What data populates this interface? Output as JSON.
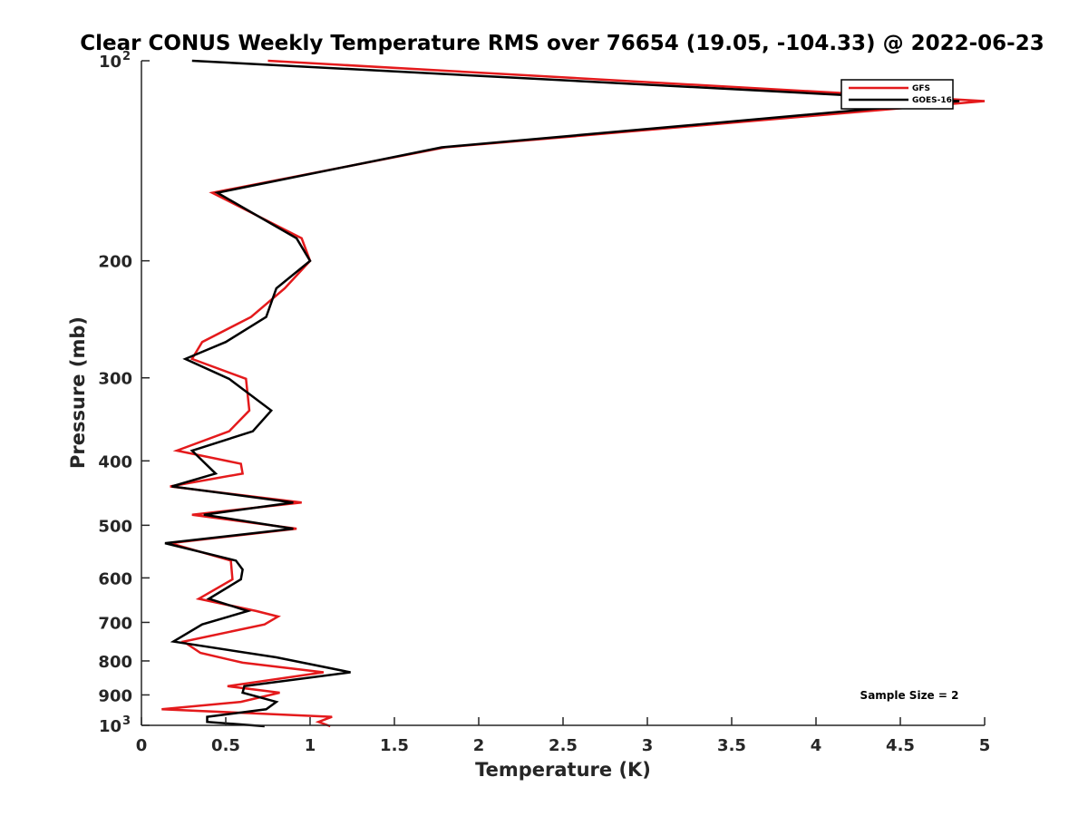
{
  "chart_data": {
    "type": "line",
    "title": "Clear CONUS Weekly Temperature RMS over 76654 (19.05, -104.33) @ 2022-06-23",
    "xlabel": "Temperature (K)",
    "ylabel": "Pressure (mb)",
    "xlim": [
      0,
      5
    ],
    "ylim": [
      100,
      1000
    ],
    "yscale": "log",
    "y_reversed": true,
    "xticks": [
      0,
      0.5,
      1,
      1.5,
      2,
      2.5,
      3,
      3.5,
      4,
      4.5,
      5
    ],
    "xtick_labels": [
      "0",
      "0.5",
      "1",
      "1.5",
      "2",
      "2.5",
      "3",
      "3.5",
      "4",
      "4.5",
      "5"
    ],
    "yticks": [
      {
        "value": 100,
        "base": "10",
        "exp": "2"
      },
      {
        "value": 200,
        "label": "200"
      },
      {
        "value": 300,
        "label": "300"
      },
      {
        "value": 400,
        "label": "400"
      },
      {
        "value": 500,
        "label": "500"
      },
      {
        "value": 600,
        "label": "600"
      },
      {
        "value": 700,
        "label": "700"
      },
      {
        "value": 800,
        "label": "800"
      },
      {
        "value": 900,
        "label": "900"
      },
      {
        "value": 1000,
        "base": "10",
        "exp": "3"
      }
    ],
    "grid": false,
    "legend_position": "top-right",
    "annotation": "Sample Size = 2",
    "series": [
      {
        "name": "GFS",
        "color": "#e41a1c",
        "points": [
          [
            0.75,
            100
          ],
          [
            5.0,
            115
          ],
          [
            1.8,
            135
          ],
          [
            0.42,
            158
          ],
          [
            0.95,
            185
          ],
          [
            1.0,
            200
          ],
          [
            0.85,
            220
          ],
          [
            0.65,
            243
          ],
          [
            0.36,
            265
          ],
          [
            0.3,
            281
          ],
          [
            0.62,
            301
          ],
          [
            0.64,
            336
          ],
          [
            0.52,
            361
          ],
          [
            0.21,
            386
          ],
          [
            0.59,
            404
          ],
          [
            0.6,
            418
          ],
          [
            0.17,
            437
          ],
          [
            0.95,
            462
          ],
          [
            0.3,
            482
          ],
          [
            0.92,
            506
          ],
          [
            0.17,
            532
          ],
          [
            0.53,
            565
          ],
          [
            0.54,
            603
          ],
          [
            0.34,
            645
          ],
          [
            0.68,
            673
          ],
          [
            0.81,
            686
          ],
          [
            0.73,
            705
          ],
          [
            0.25,
            748
          ],
          [
            0.35,
            778
          ],
          [
            0.6,
            805
          ],
          [
            1.08,
            832
          ],
          [
            0.51,
            873
          ],
          [
            0.82,
            893
          ],
          [
            0.59,
            922
          ],
          [
            0.12,
            946
          ],
          [
            1.13,
            971
          ],
          [
            1.05,
            988
          ],
          [
            1.12,
            1003
          ]
        ]
      },
      {
        "name": "GOES-16",
        "color": "#000000",
        "points": [
          [
            0.3,
            100
          ],
          [
            4.85,
            115
          ],
          [
            1.78,
            135
          ],
          [
            0.45,
            158
          ],
          [
            0.92,
            185
          ],
          [
            1.0,
            200
          ],
          [
            0.8,
            220
          ],
          [
            0.74,
            243
          ],
          [
            0.5,
            265
          ],
          [
            0.26,
            281
          ],
          [
            0.52,
            301
          ],
          [
            0.77,
            336
          ],
          [
            0.66,
            361
          ],
          [
            0.3,
            386
          ],
          [
            0.44,
            418
          ],
          [
            0.18,
            437
          ],
          [
            0.9,
            462
          ],
          [
            0.37,
            482
          ],
          [
            0.9,
            506
          ],
          [
            0.14,
            532
          ],
          [
            0.56,
            565
          ],
          [
            0.6,
            583
          ],
          [
            0.59,
            603
          ],
          [
            0.4,
            645
          ],
          [
            0.63,
            673
          ],
          [
            0.36,
            705
          ],
          [
            0.19,
            748
          ],
          [
            0.8,
            790
          ],
          [
            1.24,
            832
          ],
          [
            0.61,
            873
          ],
          [
            0.6,
            893
          ],
          [
            0.8,
            922
          ],
          [
            0.74,
            946
          ],
          [
            0.39,
            971
          ],
          [
            0.39,
            988
          ],
          [
            0.73,
            1003
          ]
        ]
      }
    ]
  }
}
